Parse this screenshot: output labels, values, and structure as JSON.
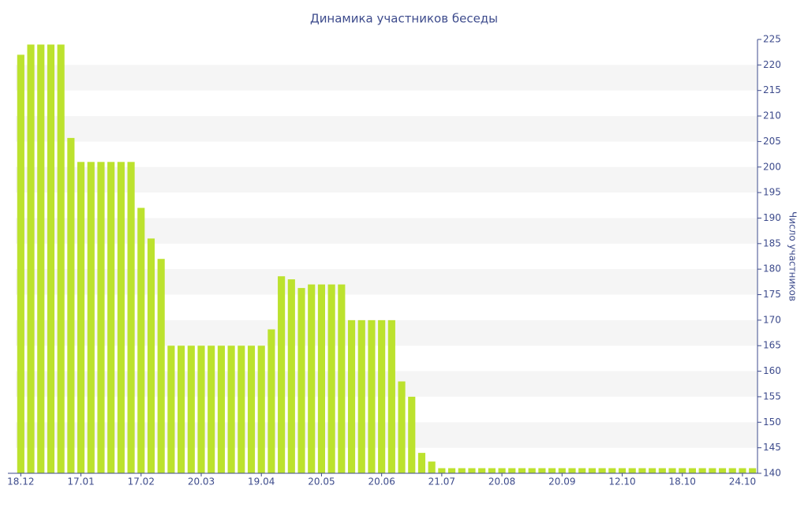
{
  "chart_data": {
    "type": "bar",
    "title": "Динамика участников беседы",
    "y_axis_label": "Число участников",
    "categories": [
      "18.12",
      null,
      null,
      null,
      null,
      null,
      "17.01",
      null,
      null,
      null,
      null,
      null,
      "17.02",
      null,
      null,
      null,
      null,
      null,
      "20.03",
      null,
      null,
      null,
      null,
      null,
      "19.04",
      null,
      null,
      null,
      null,
      null,
      "20.05",
      null,
      null,
      null,
      null,
      null,
      "20.06",
      null,
      null,
      null,
      null,
      null,
      "21.07",
      null,
      null,
      null,
      null,
      null,
      "20.08",
      null,
      null,
      null,
      null,
      null,
      "20.09",
      null,
      null,
      null,
      null,
      null,
      "12.10",
      null,
      null,
      null,
      null,
      null,
      "18.10",
      null,
      null,
      null,
      null,
      null,
      "24.10",
      null
    ],
    "values": [
      222,
      224,
      224,
      224,
      224,
      205.7,
      201,
      201,
      201,
      201,
      201,
      201,
      192,
      186,
      182,
      165,
      165,
      165,
      165,
      165,
      165,
      165,
      165,
      165,
      165,
      168.2,
      178.6,
      178,
      176.3,
      177,
      177,
      177,
      177,
      170,
      170,
      170,
      170,
      170,
      158,
      155,
      144,
      142.3,
      141,
      141,
      141,
      141,
      141,
      141,
      141,
      141,
      141,
      141,
      141,
      141,
      141,
      141,
      141,
      141,
      141,
      141,
      141,
      141,
      141,
      141,
      141,
      141,
      141,
      141,
      141,
      141,
      141,
      141,
      141,
      141
    ],
    "color": "#bce22e",
    "ylim": [
      140,
      225
    ],
    "yticks": [
      140,
      145,
      150,
      155,
      160,
      165,
      170,
      175,
      180,
      185,
      190,
      195,
      200,
      205,
      210,
      215,
      220,
      225
    ],
    "grid": true,
    "y_axis_side": "right"
  }
}
